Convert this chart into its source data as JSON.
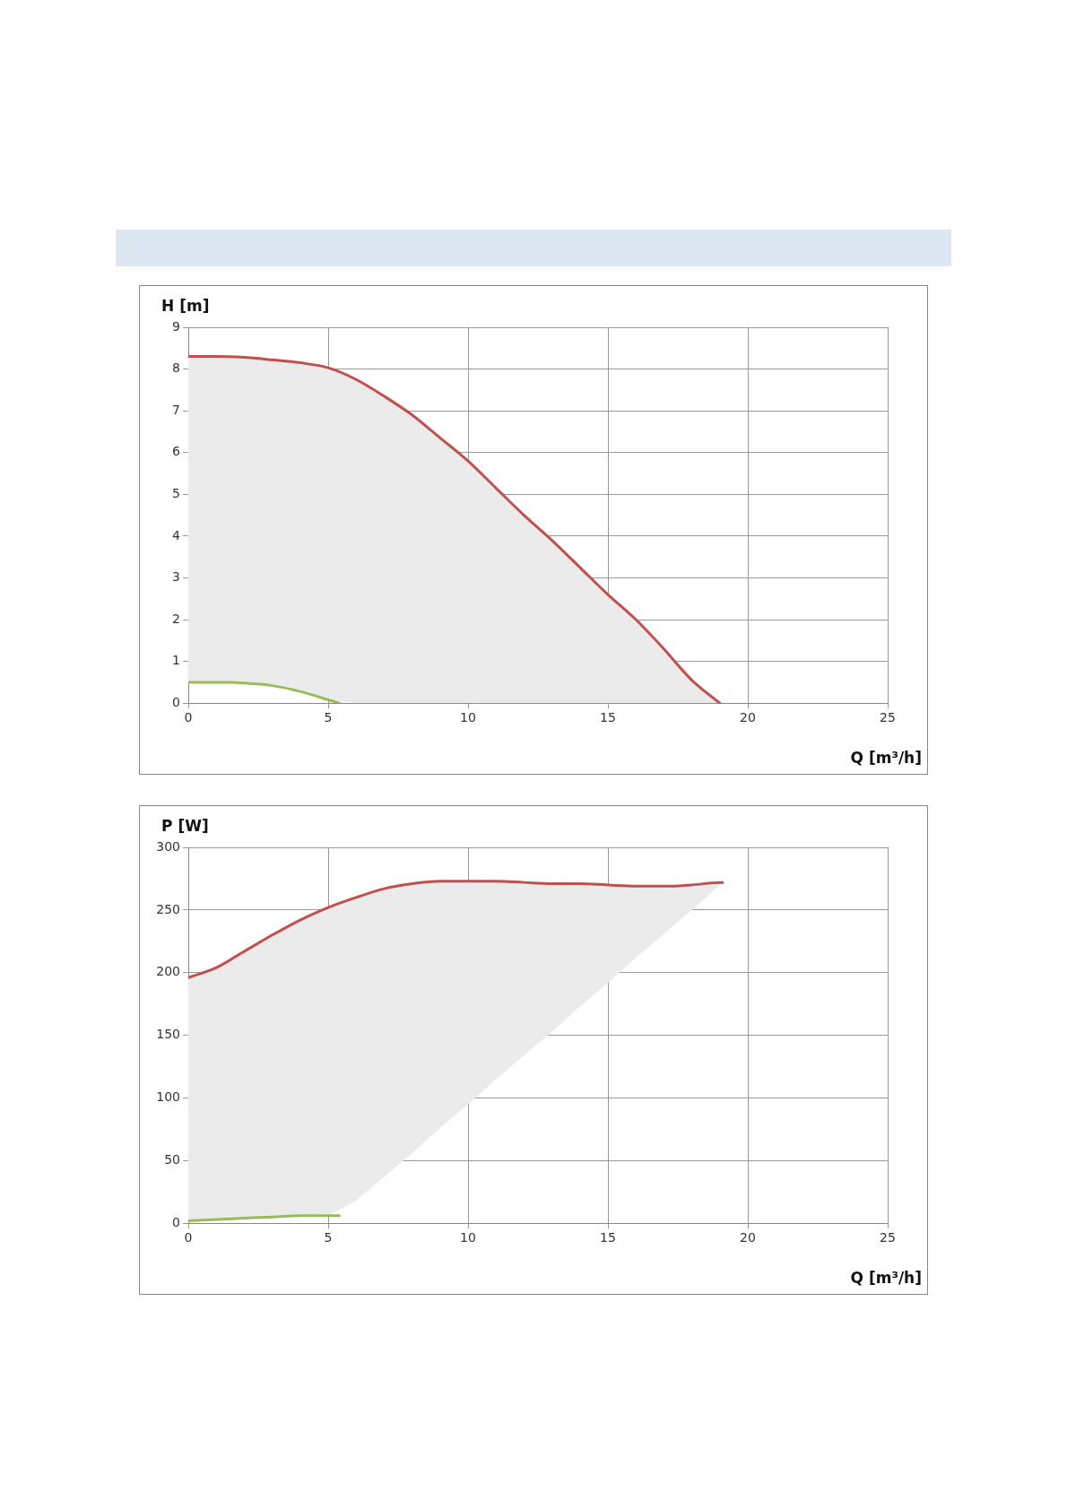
{
  "chart_data": [
    {
      "type": "line",
      "xlabel": "Q [m³/h]",
      "ylabel": "H [m]",
      "xlim": [
        0,
        25
      ],
      "xticks": [
        0,
        5,
        10,
        15,
        20,
        25
      ],
      "ylim": [
        0,
        9
      ],
      "yticks": [
        0,
        1,
        2,
        3,
        4,
        5,
        6,
        7,
        8,
        9
      ],
      "grid": true,
      "legend": false,
      "marker": "none",
      "line_style": "solid",
      "series": [
        {
          "color": "#c0504d",
          "x": [
            0,
            1,
            2,
            3,
            4,
            5,
            6,
            7,
            8,
            9,
            10,
            11,
            12,
            13,
            14,
            15,
            16,
            17,
            18,
            19
          ],
          "values": [
            8.3,
            8.3,
            8.28,
            8.22,
            8.15,
            8.03,
            7.75,
            7.35,
            6.9,
            6.35,
            5.8,
            5.15,
            4.5,
            3.9,
            3.25,
            2.6,
            2.0,
            1.3,
            0.55,
            0
          ],
          "lower": [
            0.5,
            0.5,
            0.48,
            0.42,
            0.28,
            0.08,
            0,
            0,
            0,
            0,
            0,
            0,
            0,
            0,
            0,
            0,
            0,
            0,
            0,
            0
          ],
          "upper": [
            8.3,
            8.3,
            8.28,
            8.22,
            8.15,
            8.03,
            7.75,
            7.35,
            6.9,
            6.35,
            5.8,
            5.15,
            4.5,
            3.9,
            3.25,
            2.6,
            2.0,
            1.3,
            0.55,
            0
          ]
        },
        {
          "color": "#9bbb59",
          "x": [
            0,
            1,
            2,
            3,
            4,
            5,
            5.4
          ],
          "values": [
            0.5,
            0.5,
            0.48,
            0.42,
            0.28,
            0.08,
            0
          ]
        }
      ]
    },
    {
      "type": "line",
      "xlabel": "Q [m³/h]",
      "ylabel": "P [W]",
      "xlim": [
        0,
        25
      ],
      "xticks": [
        0,
        5,
        10,
        15,
        20,
        25
      ],
      "ylim": [
        0,
        300
      ],
      "yticks": [
        0,
        50,
        100,
        150,
        200,
        250,
        300
      ],
      "grid": true,
      "legend": false,
      "marker": "none",
      "line_style": "solid",
      "series": [
        {
          "color": "#c0504d",
          "x": [
            0,
            1,
            2,
            3,
            4,
            5,
            6,
            7,
            8,
            9,
            10,
            11,
            12,
            13,
            14,
            15,
            16,
            17,
            18,
            19,
            19.1
          ],
          "values": [
            196,
            204,
            217,
            230,
            242,
            252,
            260,
            267,
            271,
            273,
            273,
            273,
            272,
            271,
            271,
            270,
            269,
            269,
            270,
            272,
            272
          ],
          "lower": [
            2,
            3,
            4,
            5,
            6,
            6,
            18,
            37,
            56,
            76,
            95,
            115,
            134,
            153,
            173,
            192,
            212,
            231,
            250,
            270,
            272
          ],
          "upper": [
            196,
            204,
            217,
            230,
            242,
            252,
            260,
            267,
            271,
            273,
            273,
            273,
            272,
            271,
            271,
            270,
            269,
            269,
            270,
            272,
            272
          ]
        },
        {
          "color": "#9bbb59",
          "x": [
            0,
            1,
            2,
            3,
            4,
            5,
            5.4
          ],
          "values": [
            2,
            3,
            4,
            5,
            6,
            6,
            6
          ]
        }
      ]
    }
  ]
}
